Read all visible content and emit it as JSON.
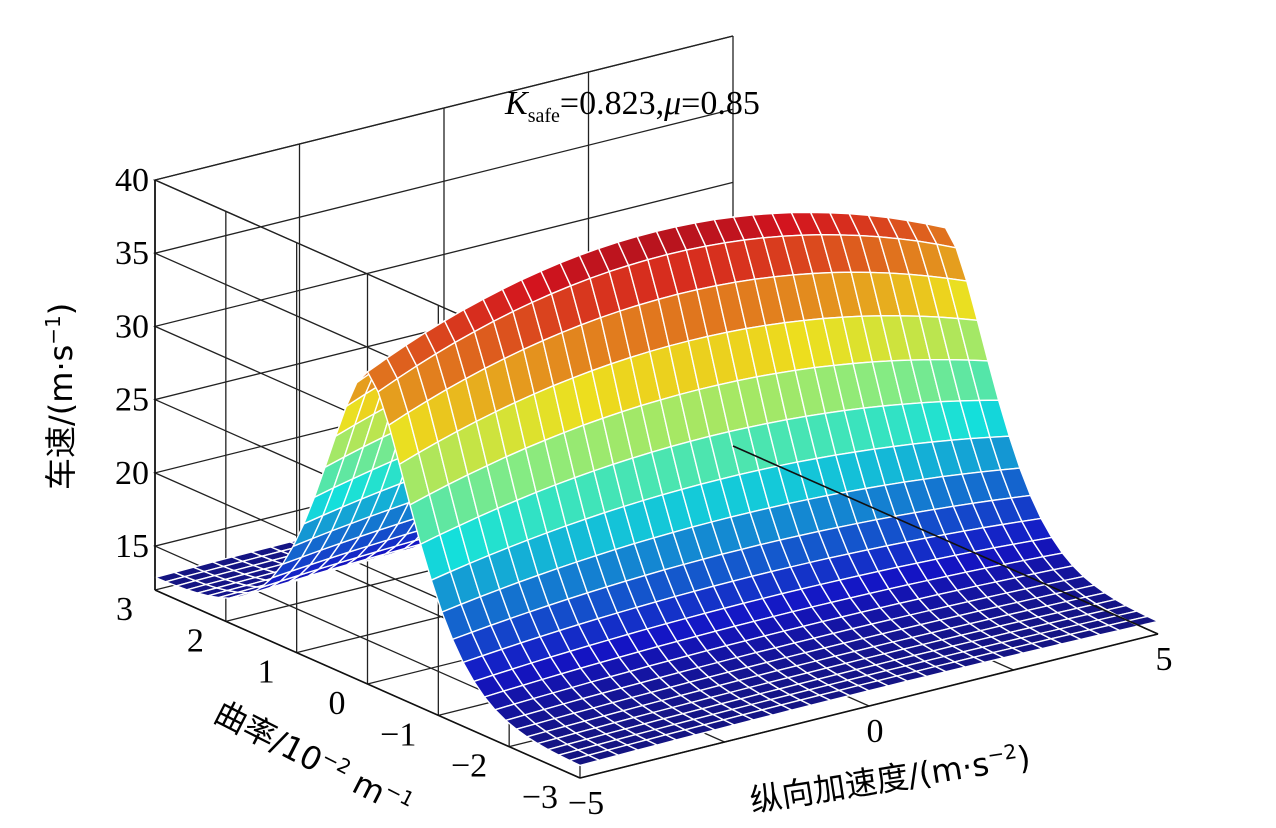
{
  "chart_data": {
    "type": "surface3d",
    "annotation": {
      "K_symbol": "K",
      "K_subscript": "safe",
      "K_value": "=0.823",
      "separator": ",",
      "mu_symbol": "μ",
      "mu_value": "=0.85"
    },
    "zlabel": {
      "main": "车速/(m·s",
      "sup": "−1",
      "close": ")"
    },
    "xlabel": {
      "main": "纵向加速度/(m·s",
      "sup": "−2",
      "close": ")"
    },
    "ylabel": {
      "main": "曲率/10",
      "sup1": "−2",
      "mid": " m",
      "sup2": "−1"
    },
    "z_ticks": [
      "15",
      "20",
      "25",
      "30",
      "35",
      "40"
    ],
    "y_ticks": [
      "3",
      "2",
      "1",
      "0",
      "−1",
      "−2",
      "−3"
    ],
    "x_ticks": [
      "−5",
      "0",
      "5"
    ],
    "xlim": [
      -5,
      5
    ],
    "ylim": [
      -3,
      3
    ],
    "zlim": [
      12,
      40
    ],
    "z_cap": 38,
    "colormap": "jet",
    "grid": true,
    "surface_model": "v = min(38, 40·exp(-|curvature|)·(1 - (a/5)^2·0.25) + 12·(1-exp(-|curvature|)) ) approximated"
  }
}
